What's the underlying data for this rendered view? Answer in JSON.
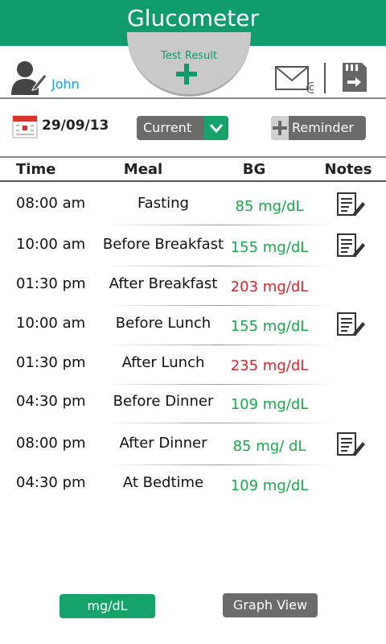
{
  "header": {
    "title": "Glucometer",
    "test_result": "Test Result"
  },
  "user": {
    "name": "John"
  },
  "toolbar": {
    "date": "29/09/13",
    "dropdown": "Current",
    "reminder": "Reminder"
  },
  "table": {
    "columns": [
      "Time",
      "Meal",
      "BG",
      "Notes"
    ],
    "rows": [
      {
        "time": "08:00 am",
        "meal": "Fasting",
        "bg": "85 mg/dL",
        "color": "#19a84a",
        "note": true
      },
      {
        "time": "10:00 am",
        "meal": "Before Breakfast",
        "bg": "155 mg/dL",
        "color": "#19a84a",
        "note": true
      },
      {
        "time": "01:30 pm",
        "meal": "After Breakfast",
        "bg": "203 mg/dL",
        "color": "#e3202b",
        "note": false
      },
      {
        "time": "10:00 am",
        "meal": "Before Lunch",
        "bg": "155 mg/dL",
        "color": "#19a84a",
        "note": true
      },
      {
        "time": "01:30 pm",
        "meal": "After Lunch",
        "bg": "235 mg/dL",
        "color": "#e3202b",
        "note": false
      },
      {
        "time": "04:30 pm",
        "meal": "Before Dinner",
        "bg": "109 mg/dL",
        "color": "#19a84a",
        "note": false
      },
      {
        "time": "08:00 pm",
        "meal": "After Dinner",
        "bg": "85 mg/ dL",
        "color": "#19a84a",
        "note": true
      },
      {
        "time": "04:30 pm",
        "meal": "At Bedtime",
        "bg": "109 mg/dL",
        "color": "#19a84a",
        "note": false
      }
    ]
  },
  "footer": {
    "unit_button": "mg/dL",
    "graph_button": "Graph View"
  }
}
